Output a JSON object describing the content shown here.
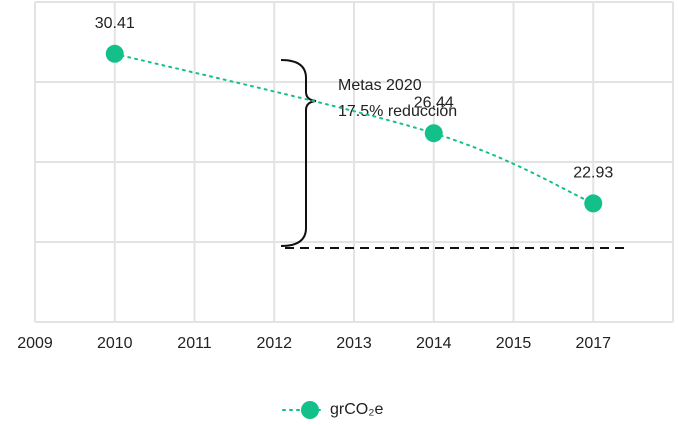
{
  "chart_data": {
    "type": "line",
    "categories": [
      "2009",
      "2010",
      "2011",
      "2012",
      "2013",
      "2014",
      "2015",
      "2017",
      null
    ],
    "ylim": [
      17,
      33
    ],
    "yticks": [
      17,
      21,
      25,
      29,
      33
    ],
    "grid": true,
    "annotations": [
      "Metas 2020",
      "17.5% reducción"
    ],
    "series": [
      {
        "name": "grCO₂e",
        "color": "#14c08a",
        "x": [
          "2010",
          "2014",
          "2017"
        ],
        "values": [
          30.41,
          26.44,
          22.93
        ]
      }
    ]
  }
}
